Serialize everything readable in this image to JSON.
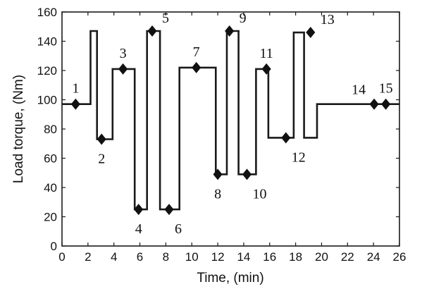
{
  "chart_data": {
    "type": "line",
    "xlabel": "Time, (min)",
    "ylabel": "Load torque, (Nm)",
    "xlim": [
      0,
      26
    ],
    "ylim": [
      0,
      160
    ],
    "xticks": [
      0,
      2,
      4,
      6,
      8,
      10,
      12,
      14,
      16,
      18,
      20,
      22,
      24,
      26
    ],
    "yticks": [
      0,
      20,
      40,
      60,
      80,
      100,
      120,
      140,
      160
    ],
    "grid": false,
    "legend": "none",
    "series": [
      {
        "line_color": "#1a1a1a",
        "x": [
          0,
          2.2,
          2.2,
          2.7,
          2.7,
          3.9,
          3.9,
          5.6,
          5.6,
          6.55,
          6.55,
          7.55,
          7.55,
          9.05,
          9.05,
          11.85,
          11.85,
          12.7,
          12.7,
          13.6,
          13.6,
          14.95,
          14.95,
          15.9,
          15.9,
          17.85,
          17.85,
          18.65,
          18.65,
          19.65,
          19.65,
          20.4,
          20.4,
          26
        ],
        "y": [
          97,
          97,
          147,
          147,
          73,
          73,
          121,
          121,
          25,
          25,
          147,
          147,
          25,
          25,
          122,
          122,
          49,
          49,
          147,
          147,
          49,
          49,
          121,
          121,
          74,
          74,
          146,
          146,
          74,
          74,
          97,
          97,
          97,
          97
        ]
      }
    ],
    "markers": [
      {
        "label": "1",
        "x": 1.05,
        "y": 97,
        "label_pos": "above"
      },
      {
        "label": "2",
        "x": 3.05,
        "y": 73,
        "label_pos": "below"
      },
      {
        "label": "3",
        "x": 4.7,
        "y": 121,
        "label_pos": "above"
      },
      {
        "label": "4",
        "x": 5.9,
        "y": 25,
        "label_pos": "below"
      },
      {
        "label": "5",
        "x": 6.95,
        "y": 147,
        "label_pos": "above-right"
      },
      {
        "label": "6",
        "x": 8.25,
        "y": 25,
        "label_pos": "below-right"
      },
      {
        "label": "7",
        "x": 10.35,
        "y": 122,
        "label_pos": "above"
      },
      {
        "label": "8",
        "x": 12.0,
        "y": 49,
        "label_pos": "below"
      },
      {
        "label": "9",
        "x": 12.9,
        "y": 147,
        "label_pos": "above-right"
      },
      {
        "label": "10",
        "x": 14.25,
        "y": 49,
        "label_pos": "below-right"
      },
      {
        "label": "11",
        "x": 15.75,
        "y": 121,
        "label_pos": "above"
      },
      {
        "label": "12",
        "x": 17.25,
        "y": 74,
        "label_pos": "below-right"
      },
      {
        "label": "13",
        "x": 19.15,
        "y": 146,
        "label_pos": "above-right"
      },
      {
        "label": "14",
        "x": 24.05,
        "y": 97,
        "label_pos": "above-left"
      },
      {
        "label": "15",
        "x": 24.95,
        "y": 97,
        "label_pos": "above"
      }
    ]
  }
}
